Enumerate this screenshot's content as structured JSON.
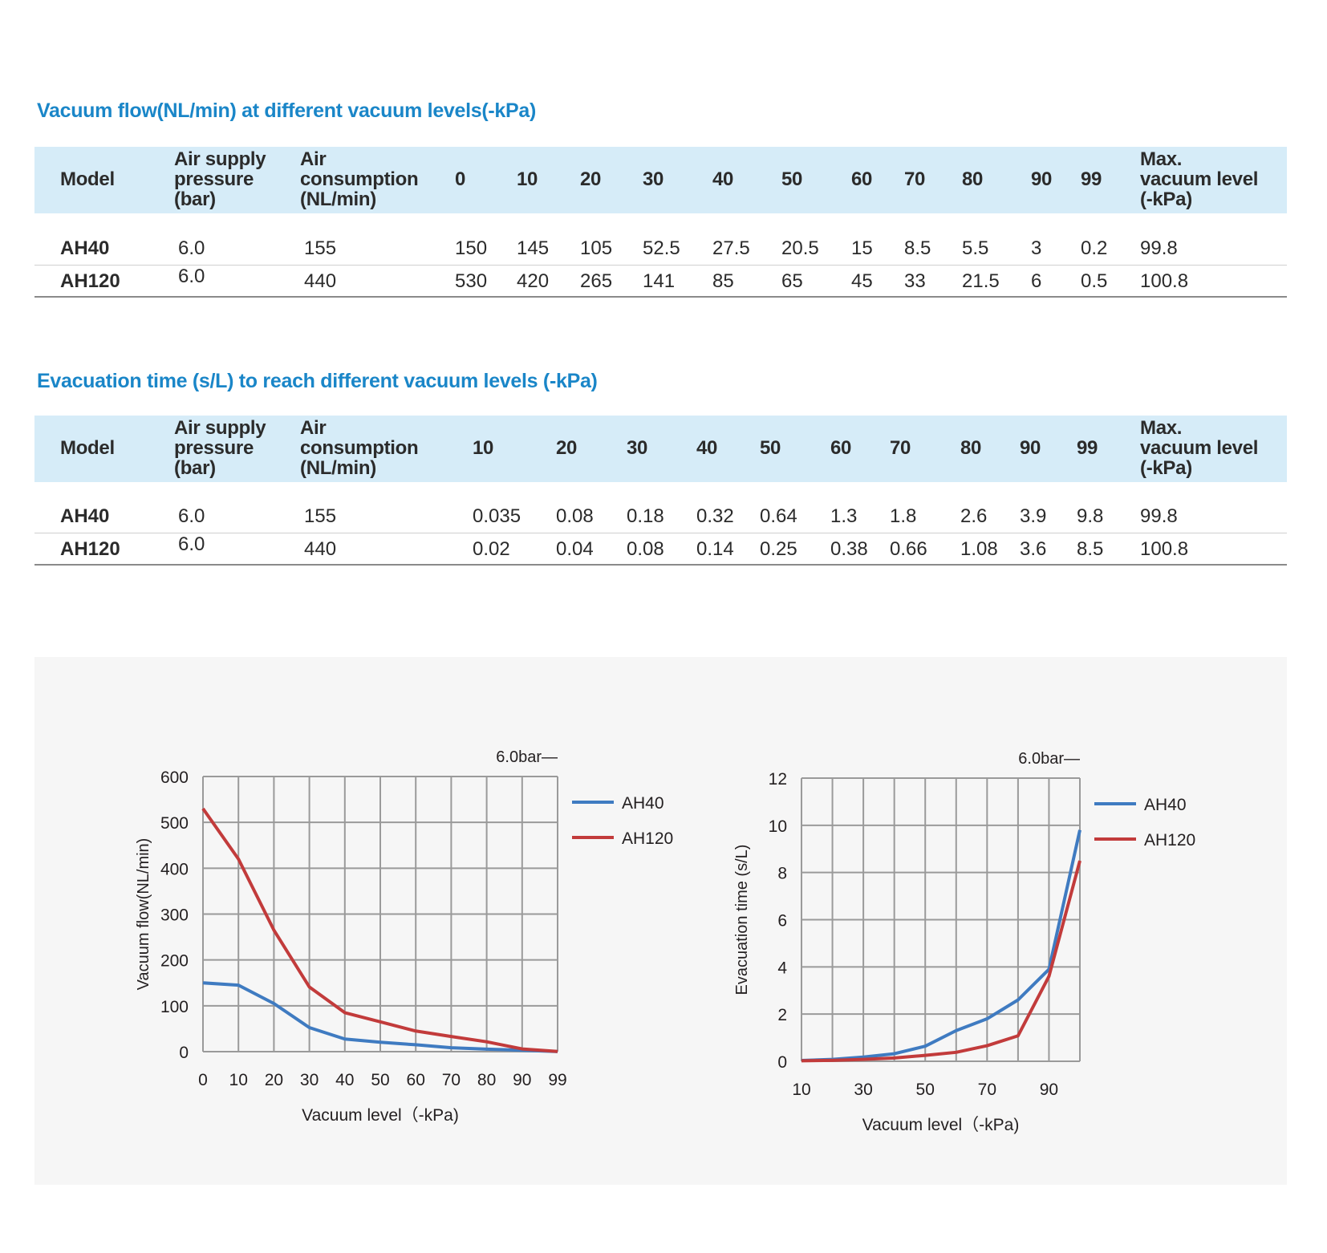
{
  "table1": {
    "title": "Vacuum flow(NL/min) at different vacuum levels(-kPa)",
    "headers": [
      "Model",
      "Air supply\npressure\n(bar)",
      "Air\nconsumption\n(NL/min)",
      "0",
      "10",
      "20",
      "30",
      "40",
      "50",
      "60",
      "70",
      "80",
      "90",
      "99",
      "Max.\nvacuum level\n(-kPa)"
    ],
    "rows": [
      [
        "AH40",
        "6.0",
        "155",
        "150",
        "145",
        "105",
        "52.5",
        "27.5",
        "20.5",
        "15",
        "8.5",
        "5.5",
        "3",
        "0.2",
        "99.8"
      ],
      [
        "AH120",
        "6.0",
        "440",
        "530",
        "420",
        "265",
        "141",
        "85",
        "65",
        "45",
        "33",
        "21.5",
        "6",
        "0.5",
        "100.8"
      ]
    ]
  },
  "table2": {
    "title": "Evacuation time (s/L) to reach different vacuum levels (-kPa)",
    "headers": [
      "Model",
      "Air supply\npressure\n(bar)",
      "Air\nconsumption\n(NL/min)",
      "10",
      "20",
      "30",
      "40",
      "50",
      "60",
      "70",
      "80",
      "90",
      "99",
      "Max.\nvacuum level\n(-kPa)"
    ],
    "rows": [
      [
        "AH40",
        "6.0",
        "155",
        "0.035",
        "0.08",
        "0.18",
        "0.32",
        "0.64",
        "1.3",
        "1.8",
        "2.6",
        "3.9",
        "9.8",
        "99.8"
      ],
      [
        "AH120",
        "6.0",
        "440",
        "0.02",
        "0.04",
        "0.08",
        "0.14",
        "0.25",
        "0.38",
        "0.66",
        "1.08",
        "3.6",
        "8.5",
        "100.8"
      ]
    ]
  },
  "chart_data": [
    {
      "type": "line",
      "title": "",
      "annotation": "6.0bar—",
      "xlabel": "Vacuum level（-kPa)",
      "ylabel": "Vacuum flow(NL/min)",
      "x": [
        "0",
        "10",
        "20",
        "30",
        "40",
        "50",
        "60",
        "70",
        "80",
        "90",
        "99"
      ],
      "ylim": [
        0,
        600
      ],
      "yticks": [
        0,
        100,
        200,
        300,
        400,
        500,
        600
      ],
      "grid": true,
      "legend": "right",
      "series": [
        {
          "name": "AH40",
          "color": "#3f7bc1",
          "values": [
            150,
            145,
            105,
            52.5,
            27.5,
            20.5,
            15,
            8.5,
            5.5,
            3,
            0.2
          ]
        },
        {
          "name": "AH120",
          "color": "#c23b3b",
          "values": [
            530,
            420,
            265,
            141,
            85,
            65,
            45,
            33,
            21.5,
            6,
            0.5
          ]
        }
      ]
    },
    {
      "type": "line",
      "title": "",
      "annotation": "6.0bar—",
      "xlabel": "Vacuum level（-kPa)",
      "ylabel": "Evacuation time (s/L)",
      "x": [
        "10",
        "20",
        "30",
        "40",
        "50",
        "60",
        "70",
        "80",
        "90",
        "99"
      ],
      "xtick_labels": [
        "10",
        "",
        "30",
        "",
        "50",
        "",
        "70",
        "",
        "90",
        ""
      ],
      "ylim": [
        0,
        12
      ],
      "yticks": [
        0,
        2,
        4,
        6,
        8,
        10,
        12
      ],
      "grid": true,
      "legend": "right",
      "series": [
        {
          "name": "AH40",
          "color": "#3f7bc1",
          "values": [
            0.035,
            0.08,
            0.18,
            0.32,
            0.64,
            1.3,
            1.8,
            2.6,
            3.9,
            9.8
          ]
        },
        {
          "name": "AH120",
          "color": "#c23b3b",
          "values": [
            0.02,
            0.04,
            0.08,
            0.14,
            0.25,
            0.38,
            0.66,
            1.08,
            3.6,
            8.5
          ]
        }
      ]
    }
  ]
}
